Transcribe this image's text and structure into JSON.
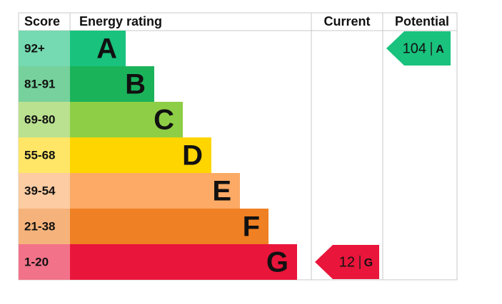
{
  "header": {
    "score": "Score",
    "rating": "Energy rating",
    "current": "Current",
    "potential": "Potential"
  },
  "bands": [
    {
      "score": "92+",
      "letter": "A",
      "color": "#19c27d"
    },
    {
      "score": "81-91",
      "letter": "B",
      "color": "#1bb35a"
    },
    {
      "score": "69-80",
      "letter": "C",
      "color": "#8dce46"
    },
    {
      "score": "55-68",
      "letter": "D",
      "color": "#ffd500"
    },
    {
      "score": "39-54",
      "letter": "E",
      "color": "#fcaa65"
    },
    {
      "score": "21-38",
      "letter": "F",
      "color": "#ef8023"
    },
    {
      "score": "1-20",
      "letter": "G",
      "color": "#e9153b"
    }
  ],
  "current": {
    "value": 12,
    "letter": "G"
  },
  "potential": {
    "value": 104,
    "letter": "A"
  }
}
